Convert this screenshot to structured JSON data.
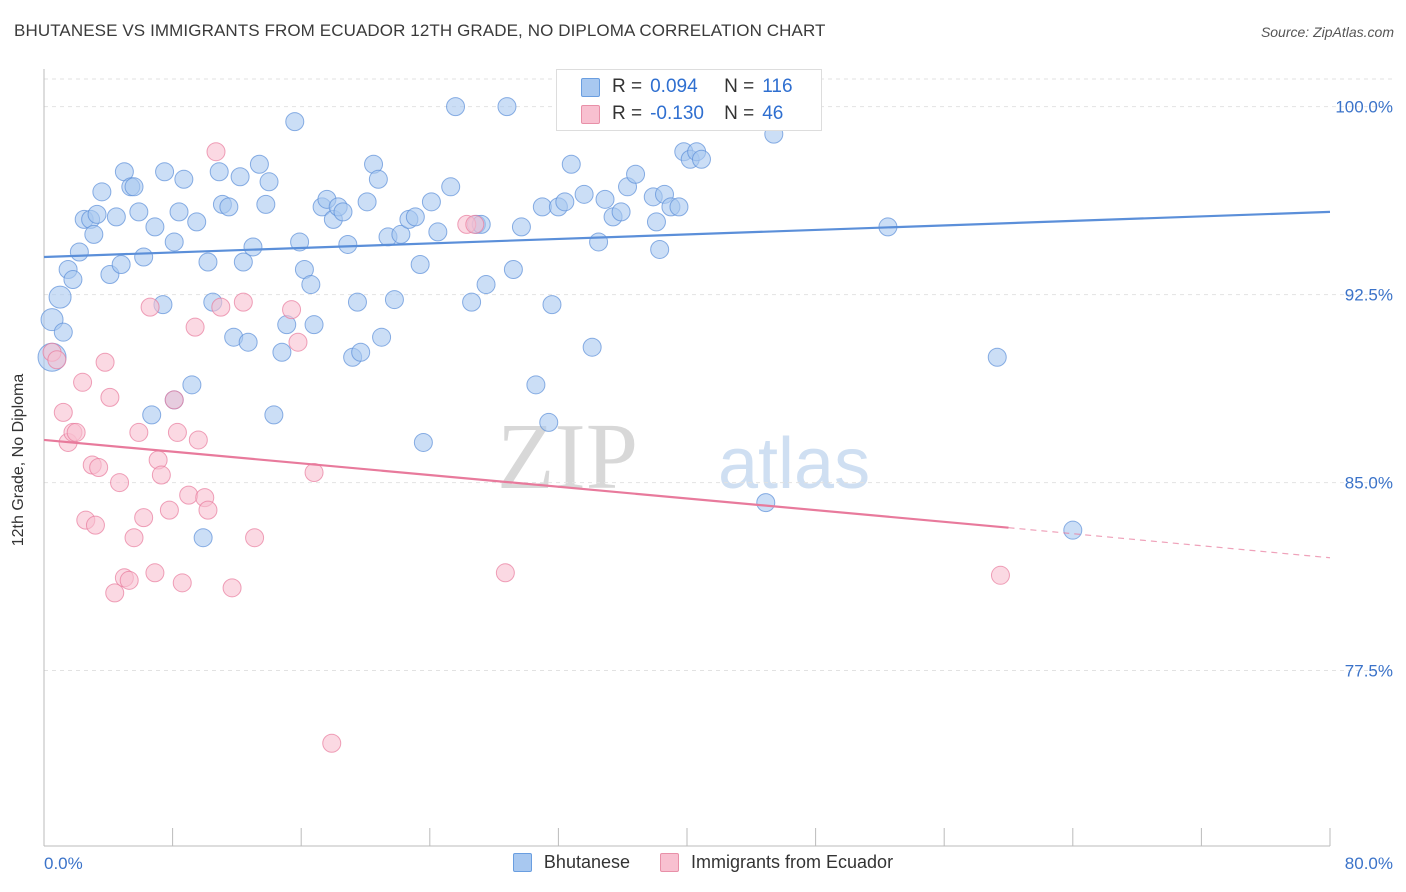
{
  "title": "BHUTANESE VS IMMIGRANTS FROM ECUADOR 12TH GRADE, NO DIPLOMA CORRELATION CHART",
  "source": "Source: ZipAtlas.com",
  "watermark": {
    "zip": "ZIP",
    "atlas": "atlas"
  },
  "legend": {
    "r_label": "R =",
    "n_label": "N =",
    "rows": [
      {
        "r": "0.094",
        "n": "116",
        "fill": "#a8c8f0",
        "stroke": "#6a9ee0"
      },
      {
        "r": "-0.130",
        "n": "46",
        "fill": "#f8c0d0",
        "stroke": "#e890a8"
      }
    ]
  },
  "chart_data": {
    "type": "scatter",
    "xlabel": "",
    "ylabel": "12th Grade, No Diploma",
    "xlim": [
      0,
      80
    ],
    "ylim": [
      70.5,
      101.5
    ],
    "x_tick_labels": [
      "0.0%",
      "80.0%"
    ],
    "y_ticks": [
      77.5,
      85.0,
      92.5,
      100.0
    ],
    "y_tick_labels": [
      "77.5%",
      "85.0%",
      "92.5%",
      "100.0%"
    ],
    "grid": "horizontal dashed",
    "legend_placement": "bottom-center",
    "series": [
      {
        "name": "Bhutanese",
        "color": "#5b8fd9",
        "fill": "#a8c8f0",
        "trend": {
          "x": [
            0,
            80
          ],
          "y": [
            94.0,
            95.8
          ],
          "style": "solid"
        },
        "points": [
          [
            0.5,
            90.0
          ],
          [
            0.5,
            91.5
          ],
          [
            1.0,
            92.4
          ],
          [
            1.2,
            91.0
          ],
          [
            1.5,
            93.5
          ],
          [
            1.8,
            93.1
          ],
          [
            2.2,
            94.2
          ],
          [
            2.5,
            95.5
          ],
          [
            2.9,
            95.5
          ],
          [
            3.1,
            94.9
          ],
          [
            3.3,
            95.7
          ],
          [
            3.6,
            96.6
          ],
          [
            4.1,
            93.3
          ],
          [
            4.5,
            95.6
          ],
          [
            4.8,
            93.7
          ],
          [
            5.0,
            97.4
          ],
          [
            5.4,
            96.8
          ],
          [
            5.6,
            96.8
          ],
          [
            5.9,
            95.8
          ],
          [
            6.2,
            94.0
          ],
          [
            6.7,
            87.7
          ],
          [
            6.9,
            95.2
          ],
          [
            7.4,
            92.1
          ],
          [
            7.5,
            97.4
          ],
          [
            8.1,
            94.6
          ],
          [
            8.4,
            95.8
          ],
          [
            8.7,
            97.1
          ],
          [
            9.2,
            88.9
          ],
          [
            9.5,
            95.4
          ],
          [
            9.9,
            82.8
          ],
          [
            10.2,
            93.8
          ],
          [
            10.5,
            92.2
          ],
          [
            10.9,
            97.4
          ],
          [
            11.1,
            96.1
          ],
          [
            11.5,
            96.0
          ],
          [
            11.8,
            90.8
          ],
          [
            12.2,
            97.2
          ],
          [
            12.4,
            93.8
          ],
          [
            12.7,
            90.6
          ],
          [
            13.0,
            94.4
          ],
          [
            13.4,
            97.7
          ],
          [
            13.8,
            96.1
          ],
          [
            14.0,
            97.0
          ],
          [
            14.3,
            87.7
          ],
          [
            14.8,
            90.2
          ],
          [
            15.1,
            91.3
          ],
          [
            15.6,
            99.4
          ],
          [
            15.9,
            94.6
          ],
          [
            16.2,
            93.5
          ],
          [
            16.6,
            92.9
          ],
          [
            16.8,
            91.3
          ],
          [
            17.3,
            96.0
          ],
          [
            17.6,
            96.3
          ],
          [
            18.0,
            95.5
          ],
          [
            18.3,
            96.0
          ],
          [
            18.6,
            95.8
          ],
          [
            18.9,
            94.5
          ],
          [
            19.2,
            90.0
          ],
          [
            19.5,
            92.2
          ],
          [
            19.7,
            90.2
          ],
          [
            20.1,
            96.2
          ],
          [
            20.5,
            97.7
          ],
          [
            20.8,
            97.1
          ],
          [
            21.0,
            90.8
          ],
          [
            21.4,
            94.8
          ],
          [
            21.8,
            92.3
          ],
          [
            22.2,
            94.9
          ],
          [
            22.7,
            95.5
          ],
          [
            23.1,
            95.6
          ],
          [
            23.4,
            93.7
          ],
          [
            23.6,
            86.6
          ],
          [
            24.1,
            96.2
          ],
          [
            24.5,
            95.0
          ],
          [
            25.3,
            96.8
          ],
          [
            25.6,
            100.0
          ],
          [
            26.6,
            92.2
          ],
          [
            26.9,
            95.3
          ],
          [
            27.2,
            95.3
          ],
          [
            27.5,
            92.9
          ],
          [
            28.8,
            100.0
          ],
          [
            29.2,
            93.5
          ],
          [
            29.7,
            95.2
          ],
          [
            30.6,
            88.9
          ],
          [
            31.0,
            96.0
          ],
          [
            31.4,
            87.4
          ],
          [
            31.6,
            92.1
          ],
          [
            32.0,
            96.0
          ],
          [
            32.4,
            96.2
          ],
          [
            32.8,
            97.7
          ],
          [
            33.6,
            96.5
          ],
          [
            34.1,
            90.4
          ],
          [
            34.5,
            94.6
          ],
          [
            34.9,
            96.3
          ],
          [
            35.4,
            95.6
          ],
          [
            35.9,
            95.8
          ],
          [
            36.3,
            96.8
          ],
          [
            36.8,
            97.3
          ],
          [
            37.9,
            96.4
          ],
          [
            38.1,
            95.4
          ],
          [
            38.3,
            94.3
          ],
          [
            38.6,
            96.5
          ],
          [
            39.0,
            96.0
          ],
          [
            39.5,
            96.0
          ],
          [
            39.8,
            98.2
          ],
          [
            40.2,
            97.9
          ],
          [
            40.6,
            98.2
          ],
          [
            40.9,
            97.9
          ],
          [
            43.6,
            100.0
          ],
          [
            45.4,
            98.9
          ],
          [
            46.4,
            100.0
          ],
          [
            46.9,
            99.9
          ],
          [
            52.5,
            95.2
          ],
          [
            59.3,
            90.0
          ],
          [
            44.9,
            84.2
          ],
          [
            64.0,
            83.1
          ],
          [
            8.1,
            88.3
          ]
        ]
      },
      {
        "name": "Immigrants from Ecuador",
        "color": "#e87a9c",
        "fill": "#f8c0d0",
        "trend": {
          "x": [
            0,
            60
          ],
          "y": [
            86.7,
            83.2
          ],
          "extended": {
            "x": [
              60,
              80
            ],
            "y": [
              83.2,
              82.0
            ]
          }
        },
        "points": [
          [
            0.5,
            90.2
          ],
          [
            0.8,
            89.9
          ],
          [
            1.2,
            87.8
          ],
          [
            1.5,
            86.6
          ],
          [
            1.8,
            87.0
          ],
          [
            2.0,
            87.0
          ],
          [
            2.4,
            89.0
          ],
          [
            2.6,
            83.5
          ],
          [
            3.0,
            85.7
          ],
          [
            3.2,
            83.3
          ],
          [
            3.4,
            85.6
          ],
          [
            3.8,
            89.8
          ],
          [
            4.1,
            88.4
          ],
          [
            4.4,
            80.6
          ],
          [
            4.7,
            85.0
          ],
          [
            5.0,
            81.2
          ],
          [
            5.3,
            81.1
          ],
          [
            5.6,
            82.8
          ],
          [
            5.9,
            87.0
          ],
          [
            6.2,
            83.6
          ],
          [
            6.6,
            92.0
          ],
          [
            6.9,
            81.4
          ],
          [
            7.1,
            85.9
          ],
          [
            7.3,
            85.3
          ],
          [
            7.8,
            83.9
          ],
          [
            8.1,
            88.3
          ],
          [
            8.3,
            87.0
          ],
          [
            8.6,
            81.0
          ],
          [
            9.0,
            84.5
          ],
          [
            9.4,
            91.2
          ],
          [
            9.6,
            86.7
          ],
          [
            10.0,
            84.4
          ],
          [
            10.2,
            83.9
          ],
          [
            10.7,
            98.2
          ],
          [
            11.0,
            92.0
          ],
          [
            11.7,
            80.8
          ],
          [
            12.4,
            92.2
          ],
          [
            13.1,
            82.8
          ],
          [
            15.4,
            91.9
          ],
          [
            15.8,
            90.6
          ],
          [
            16.8,
            85.4
          ],
          [
            17.9,
            74.6
          ],
          [
            26.3,
            95.3
          ],
          [
            26.8,
            95.3
          ],
          [
            28.7,
            81.4
          ],
          [
            59.5,
            81.3
          ]
        ]
      }
    ]
  }
}
